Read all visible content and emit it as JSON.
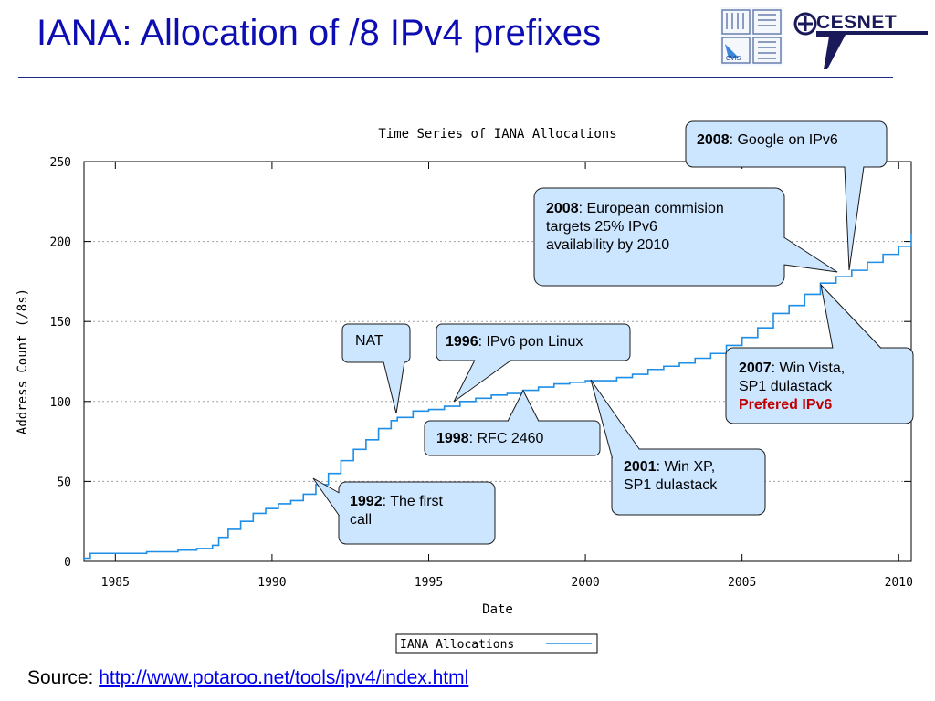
{
  "slide": {
    "title": "IANA: Allocation of /8 IPv4 prefixes",
    "source_label": "Source:",
    "source_link": "http://www.potaroo.net/tools/ipv4/index.html",
    "logos": {
      "left": "CVIS",
      "right": "CESNET"
    }
  },
  "colors": {
    "title": "#0d0db4",
    "series": "#1e8ee6",
    "callout_fill": "#cde6ff",
    "callout_stroke": "#1a1a1a",
    "accent_red": "#c00000"
  },
  "chart_data": {
    "type": "line",
    "title": "Time Series of IANA Allocations",
    "xlabel": "Date",
    "ylabel": "Address Count (/8s)",
    "xlim": [
      1984.0,
      2010.4
    ],
    "ylim": [
      0,
      250
    ],
    "x_ticks": [
      1985,
      1990,
      1995,
      2000,
      2005,
      2010
    ],
    "y_ticks": [
      0,
      50,
      100,
      150,
      200,
      250
    ],
    "grid": "horizontal-dotted",
    "legend": {
      "position": "bottom-center",
      "entries": [
        "IANA Allocations"
      ]
    },
    "series": [
      {
        "name": "IANA Allocations",
        "x": [
          1984.0,
          1984.2,
          1986.0,
          1987.0,
          1987.6,
          1988.1,
          1988.3,
          1988.6,
          1989.0,
          1989.4,
          1989.8,
          1990.2,
          1990.6,
          1991.0,
          1991.4,
          1991.8,
          1992.2,
          1992.6,
          1993.0,
          1993.4,
          1993.8,
          1994.0,
          1994.5,
          1995.0,
          1995.5,
          1996.0,
          1996.5,
          1997.0,
          1997.5,
          1998.0,
          1998.5,
          1999.0,
          1999.5,
          2000.0,
          2000.5,
          2001.0,
          2001.5,
          2002.0,
          2002.5,
          2003.0,
          2003.5,
          2004.0,
          2004.5,
          2005.0,
          2005.5,
          2006.0,
          2006.5,
          2007.0,
          2007.5,
          2008.0,
          2008.5,
          2009.0,
          2009.5,
          2010.0,
          2010.4
        ],
        "y": [
          2,
          5,
          6,
          7,
          8,
          10,
          15,
          20,
          25,
          30,
          33,
          36,
          38,
          42,
          48,
          55,
          63,
          70,
          76,
          83,
          88,
          90,
          94,
          95,
          97,
          100,
          102,
          104,
          105,
          107,
          109,
          111,
          112,
          113,
          113,
          115,
          117,
          120,
          122,
          124,
          127,
          130,
          135,
          140,
          146,
          155,
          160,
          167,
          174,
          178,
          182,
          187,
          192,
          197,
          205
        ]
      }
    ]
  },
  "callouts": [
    {
      "id": "nat",
      "lines": [
        {
          "text": "NAT"
        }
      ]
    },
    {
      "id": "1996",
      "lines": [
        {
          "bold": "1996",
          "text": ": IPv6 pon Linux"
        }
      ]
    },
    {
      "id": "1998",
      "lines": [
        {
          "bold": "1998",
          "text": ": RFC 2460"
        }
      ]
    },
    {
      "id": "1992",
      "lines": [
        {
          "bold": "1992",
          "text": ": The first"
        },
        {
          "text": "call"
        }
      ]
    },
    {
      "id": "2001",
      "lines": [
        {
          "bold": "2001",
          "text": ": Win XP,"
        },
        {
          "text": "SP1 dulastack"
        }
      ]
    },
    {
      "id": "2007",
      "lines": [
        {
          "bold": "2007",
          "text": ": Win Vista,"
        },
        {
          "text": "SP1 dulastack"
        },
        {
          "red": "Prefered IPv6"
        }
      ]
    },
    {
      "id": "2008eu",
      "lines": [
        {
          "bold": "2008",
          "text": ": European commision"
        },
        {
          "text": "targets 25% IPv6"
        },
        {
          "text": "availability by 2010"
        }
      ]
    },
    {
      "id": "2008g",
      "lines": [
        {
          "bold": "2008",
          "text": ": Google on IPv6"
        }
      ]
    }
  ]
}
